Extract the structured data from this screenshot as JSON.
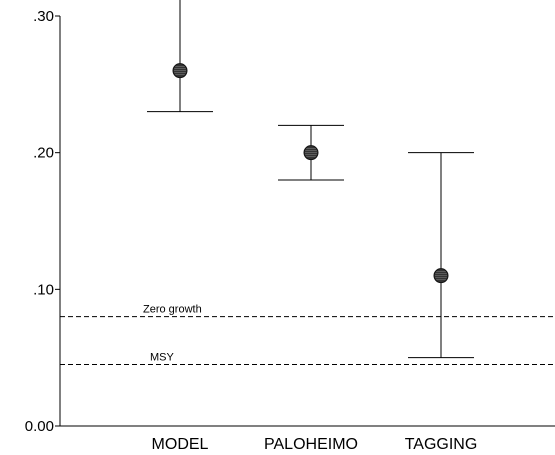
{
  "chart_data": {
    "type": "scatter",
    "title": "",
    "xlabel": "",
    "ylabel": "",
    "ylim": [
      0,
      0.3
    ],
    "y_ticks": [
      {
        "value": 0.3,
        "label": ".30"
      },
      {
        "value": 0.2,
        "label": ".20"
      },
      {
        "value": 0.1,
        "label": ".10"
      },
      {
        "value": 0.0,
        "label": "0.00"
      }
    ],
    "categories": [
      "MODEL",
      "PALOHEIMO",
      "TAGGING"
    ],
    "series": [
      {
        "values": [
          0.26,
          0.2,
          0.11
        ],
        "lower": [
          0.23,
          0.18,
          0.05
        ],
        "upper": [
          0.3,
          0.22,
          0.2
        ],
        "upper_cap_drawn": [
          false,
          true,
          true
        ]
      }
    ],
    "reference_lines": [
      {
        "label": "Zero growth",
        "value": 0.08,
        "style": "dashed"
      },
      {
        "label": "MSY",
        "value": 0.045,
        "style": "dashed"
      }
    ],
    "grid": false,
    "colors": {
      "axis": "#000000",
      "marker": "#333333",
      "marker_stripe": "#777777"
    }
  }
}
